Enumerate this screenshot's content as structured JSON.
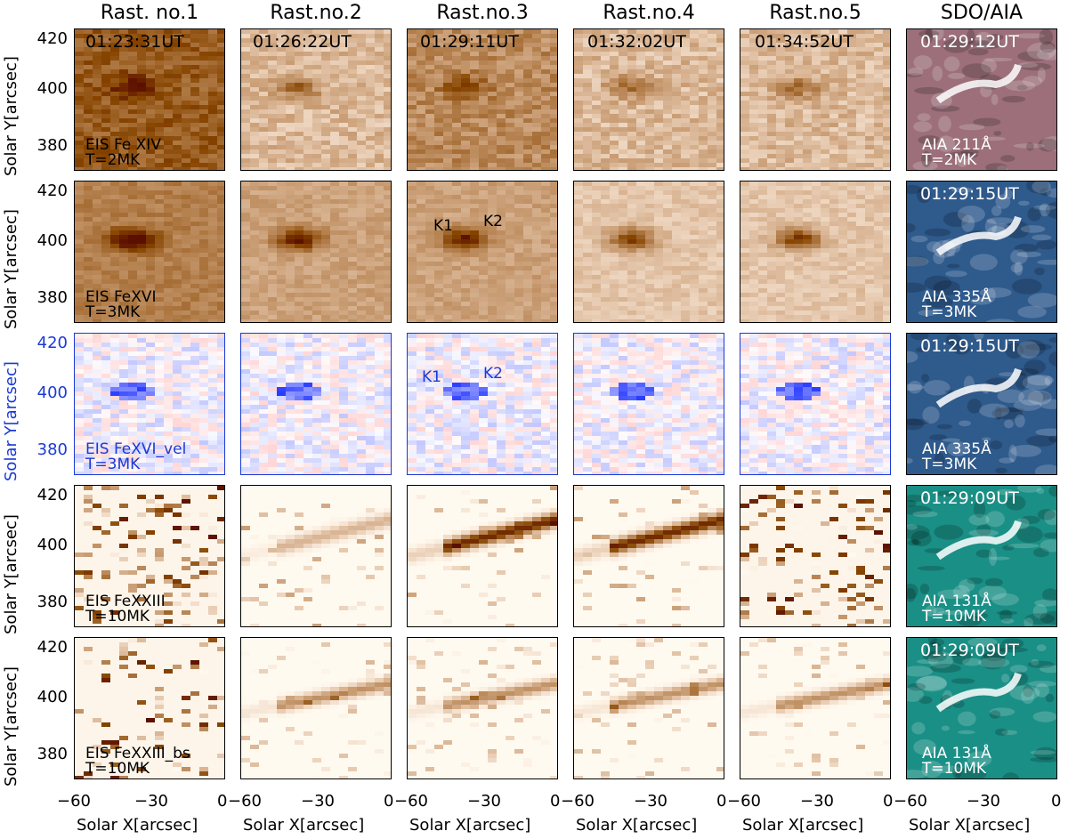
{
  "columns": [
    {
      "title": "Rast. no.1",
      "time": "01:23:31UT"
    },
    {
      "title": "Rast.no.2",
      "time": "01:26:22UT"
    },
    {
      "title": "Rast.no.3",
      "time": "01:29:11UT"
    },
    {
      "title": "Rast.no.4",
      "time": "01:32:02UT"
    },
    {
      "title": "Rast.no.5",
      "time": "01:34:52UT"
    },
    {
      "title": "SDO/AIA"
    }
  ],
  "rows": [
    {
      "eis_line": "EIS Fe XIV",
      "eis_temp": "T=2MK",
      "aia_time": "01:29:12UT",
      "aia_label": "AIA 211Å",
      "aia_temp": "T=2MK",
      "ylabel": "Solar Y[arcsec]"
    },
    {
      "eis_line": "EIS FeXVI",
      "eis_temp": "T=3MK",
      "aia_time": "01:29:15UT",
      "aia_label": "AIA 335Å",
      "aia_temp": "T=3MK",
      "ylabel": "Solar Y[arcsec]"
    },
    {
      "eis_line": "EIS FeXVI_vel",
      "eis_temp": "T=3MK",
      "aia_time": "01:29:15UT",
      "aia_label": "AIA 335Å",
      "aia_temp": "T=3MK",
      "ylabel": "Solar Y[arcsec]"
    },
    {
      "eis_line": "EIS FeXXIII",
      "eis_temp": "T=10MK",
      "aia_time": "01:29:09UT",
      "aia_label": "AIA 131Å",
      "aia_temp": "T=10MK",
      "ylabel": "Solar Y[arcsec]"
    },
    {
      "eis_line": "EIS FeXXIII_bs",
      "eis_temp": "T=10MK",
      "aia_time": "01:29:09UT",
      "aia_label": "AIA 131Å",
      "aia_temp": "T=10MK",
      "ylabel": "Solar Y[arcsec]"
    }
  ],
  "annotations": {
    "k1": "K1",
    "k2": "K2"
  },
  "axes": {
    "yticks": [
      "420",
      "400",
      "380"
    ],
    "xticks": [
      "−60",
      "−30",
      "0"
    ],
    "xlabel": "Solar X[arcsec]"
  },
  "colors": {
    "orange_dark": "#5a0f00",
    "blue_text": "#1a3ad6",
    "aia211": "#9c6f7a",
    "aia335": "#2e5a8c",
    "aia131": "#1a8f86"
  }
}
